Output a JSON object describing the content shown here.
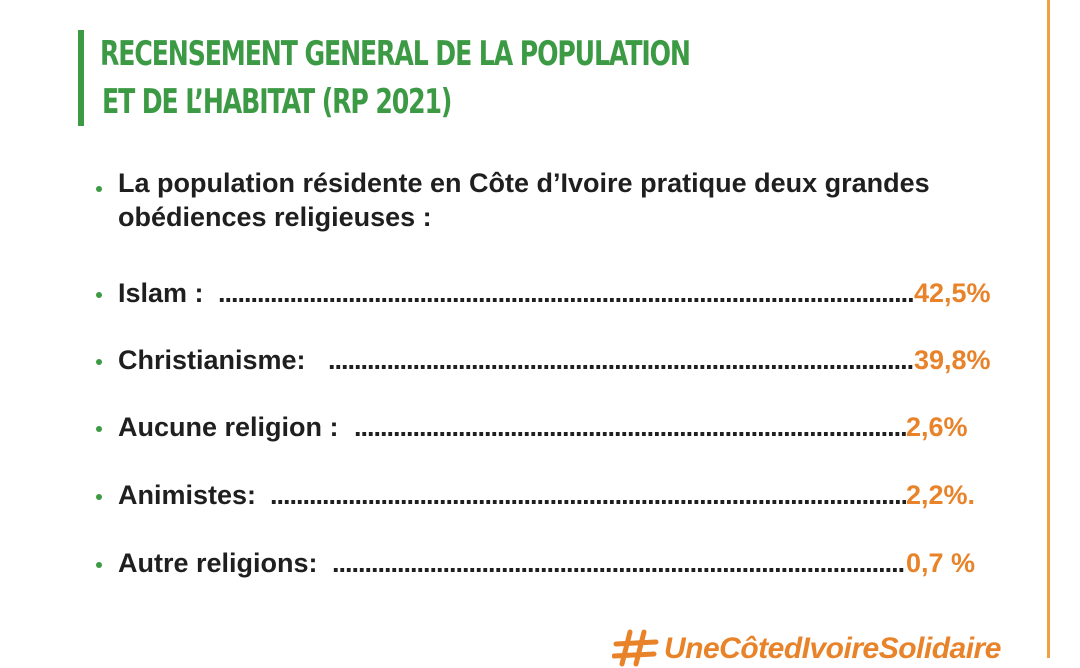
{
  "header": {
    "title_line_1": "RECENSEMENT GENERAL DE LA POPULATION",
    "title_line_2": "ET DE L’HABITAT (RP 2021)"
  },
  "intro": {
    "text": "La population résidente en Côte d’Ivoire pratique deux grandes obédiences religieuses :"
  },
  "stats": [
    {
      "label": "Islam  :",
      "value": "42,5%"
    },
    {
      "label": "Christianisme:",
      "value": "39,8%"
    },
    {
      "label": "Aucune religion :",
      "value": "2,6%"
    },
    {
      "label": "Animistes:",
      "value": "2,2%."
    },
    {
      "label": "Autre religions:",
      "value": "0,7 %"
    }
  ],
  "footer": {
    "hashtag": "UneCôtedIvoireSolidaire",
    "icon": "hashtag-icon"
  },
  "colors": {
    "accent_green": "#3c9a45",
    "accent_orange": "#e8832a"
  }
}
